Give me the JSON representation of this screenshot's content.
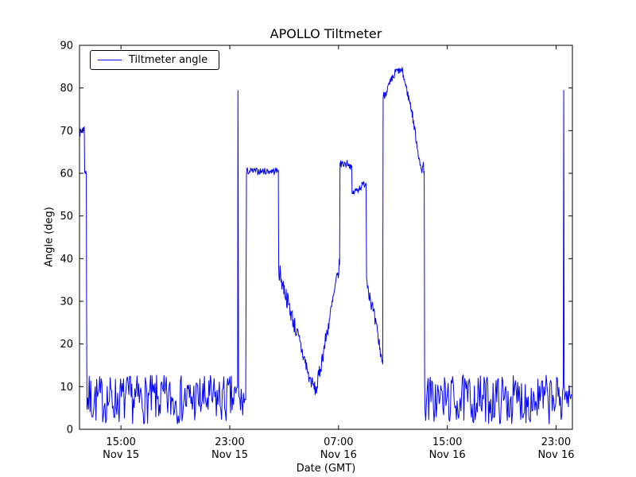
{
  "chart_data": {
    "type": "line",
    "title": "APOLLO Tiltmeter",
    "xlabel": "Date (GMT)",
    "ylabel": "Angle (deg)",
    "legend": {
      "position": "upper left",
      "entries": [
        "Tiltmeter angle"
      ]
    },
    "line_color": "#0000ff",
    "axis_color": "#000000",
    "background": "#ffffff",
    "grid": false,
    "x_unit": "hours from Nov 15 00:00 GMT",
    "xlim": [
      11.95,
      48.2
    ],
    "ylim": [
      0,
      90
    ],
    "y_ticks": [
      0,
      10,
      20,
      30,
      40,
      50,
      60,
      70,
      80,
      90
    ],
    "x_ticks": [
      {
        "t": 15,
        "time": "15:00",
        "date": "Nov 15"
      },
      {
        "t": 23,
        "time": "23:00",
        "date": "Nov 15"
      },
      {
        "t": 31,
        "time": "07:00",
        "date": "Nov 16"
      },
      {
        "t": 39,
        "time": "15:00",
        "date": "Nov 16"
      },
      {
        "t": 47,
        "time": "23:00",
        "date": "Nov 16"
      }
    ],
    "seed": 7,
    "series_segments": [
      {
        "type": "ramp",
        "t0": 11.97,
        "t1": 12.28,
        "v0": 69.5,
        "v1": 70.5,
        "jitter": 0.9,
        "step": 0.02
      },
      {
        "type": "points",
        "pts": [
          [
            12.3,
            71.0
          ],
          [
            12.33,
            60.2
          ],
          [
            12.38,
            60.0
          ],
          [
            12.42,
            60.6
          ],
          [
            12.45,
            59.8
          ],
          [
            12.47,
            30.0
          ]
        ]
      },
      {
        "type": "noise",
        "t0": 12.5,
        "t1": 23.55,
        "lo": 1.2,
        "hi": 12.8,
        "step": 0.055
      },
      {
        "type": "points",
        "pts": [
          [
            23.58,
            10.0
          ],
          [
            23.6,
            79.5
          ],
          [
            23.62,
            60.0
          ],
          [
            23.65,
            9.0
          ]
        ]
      },
      {
        "type": "noise",
        "t0": 23.68,
        "t1": 24.2,
        "lo": 2.0,
        "hi": 11.0,
        "step": 0.055
      },
      {
        "type": "points",
        "pts": [
          [
            24.23,
            59.5
          ]
        ]
      },
      {
        "type": "noise",
        "t0": 24.26,
        "t1": 26.55,
        "lo": 59.7,
        "hi": 61.3,
        "step": 0.04
      },
      {
        "type": "points",
        "pts": [
          [
            26.57,
            60.8
          ],
          [
            26.6,
            37.5
          ]
        ]
      },
      {
        "type": "ramp",
        "t0": 26.63,
        "t1": 28.75,
        "v0": 37.0,
        "v1": 13.5,
        "jitter": 2.2,
        "step": 0.035
      },
      {
        "type": "ramp",
        "t0": 28.78,
        "t1": 29.35,
        "v0": 12.5,
        "v1": 9.0,
        "jitter": 1.6,
        "step": 0.035
      },
      {
        "type": "ramp",
        "t0": 29.38,
        "t1": 31.05,
        "v0": 9.5,
        "v1": 38.0,
        "jitter": 2.0,
        "step": 0.035
      },
      {
        "type": "points",
        "pts": [
          [
            31.08,
            38.5
          ],
          [
            31.11,
            62.5
          ]
        ]
      },
      {
        "type": "noise",
        "t0": 31.13,
        "t1": 31.6,
        "lo": 61.3,
        "hi": 63.2,
        "step": 0.035
      },
      {
        "type": "ramp",
        "t0": 31.63,
        "t1": 31.97,
        "v0": 62.5,
        "v1": 61.2,
        "jitter": 0.7,
        "step": 0.035
      },
      {
        "type": "points",
        "pts": [
          [
            32.0,
            55.2
          ]
        ]
      },
      {
        "type": "ramp",
        "t0": 32.03,
        "t1": 33.0,
        "v0": 55.3,
        "v1": 57.8,
        "jitter": 0.9,
        "step": 0.035
      },
      {
        "type": "points",
        "pts": [
          [
            33.03,
            57.5
          ],
          [
            33.06,
            35.5
          ]
        ]
      },
      {
        "type": "ramp",
        "t0": 33.09,
        "t1": 34.0,
        "v0": 35.0,
        "v1": 20.0,
        "jitter": 2.0,
        "step": 0.035
      },
      {
        "type": "ramp",
        "t0": 34.02,
        "t1": 34.22,
        "v0": 19.0,
        "v1": 16.0,
        "jitter": 1.2,
        "step": 0.035
      },
      {
        "type": "points",
        "pts": [
          [
            34.25,
            15.2
          ],
          [
            34.28,
            77.5
          ]
        ]
      },
      {
        "type": "ramp",
        "t0": 34.3,
        "t1": 35.15,
        "v0": 78.0,
        "v1": 83.2,
        "jitter": 1.1,
        "step": 0.03
      },
      {
        "type": "noise",
        "t0": 35.17,
        "t1": 35.7,
        "lo": 83.2,
        "hi": 84.8,
        "step": 0.03
      },
      {
        "type": "ramp",
        "t0": 35.72,
        "t1": 36.4,
        "v0": 83.5,
        "v1": 74.5,
        "jitter": 1.0,
        "step": 0.03
      },
      {
        "type": "ramp",
        "t0": 36.42,
        "t1": 36.95,
        "v0": 74.0,
        "v1": 63.0,
        "jitter": 1.2,
        "step": 0.03
      },
      {
        "type": "noise",
        "t0": 36.97,
        "t1": 37.28,
        "lo": 59.8,
        "hi": 63.0,
        "step": 0.03
      },
      {
        "type": "points",
        "pts": [
          [
            37.3,
            60.5
          ],
          [
            37.33,
            12.0
          ]
        ]
      },
      {
        "type": "noise",
        "t0": 37.36,
        "t1": 47.5,
        "lo": 1.2,
        "hi": 12.8,
        "step": 0.055
      },
      {
        "type": "points",
        "pts": [
          [
            47.53,
            10.0
          ],
          [
            47.56,
            79.5
          ],
          [
            47.6,
            11.0
          ]
        ]
      },
      {
        "type": "noise",
        "t0": 47.63,
        "t1": 48.15,
        "lo": 5.0,
        "hi": 10.5,
        "step": 0.055
      }
    ]
  }
}
